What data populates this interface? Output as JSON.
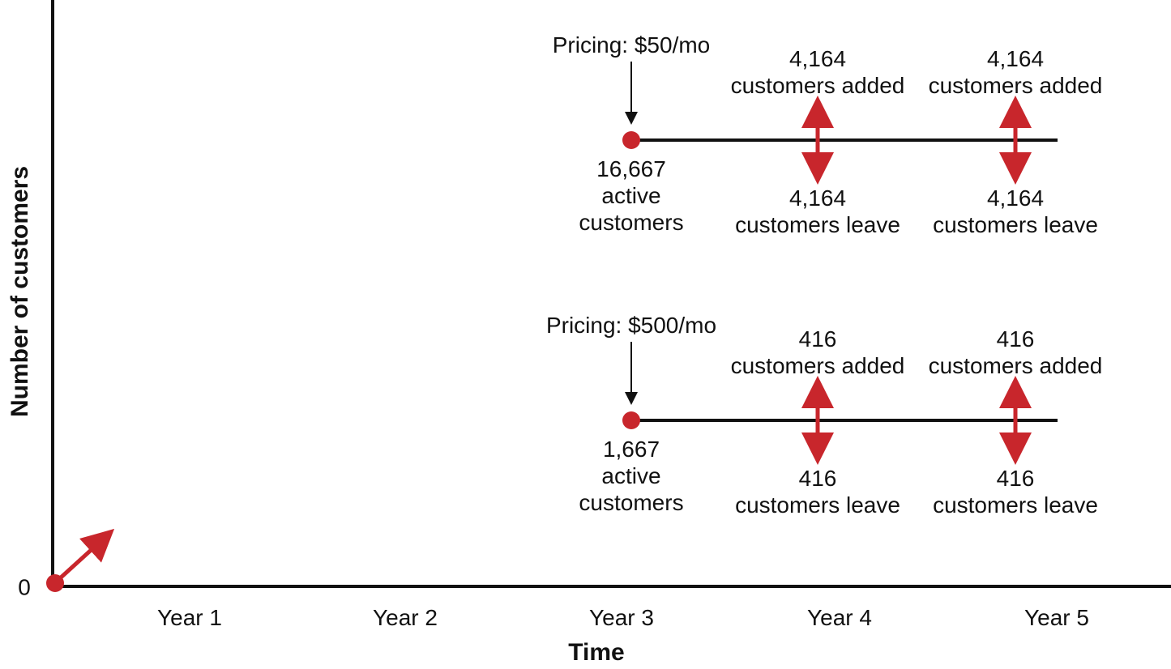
{
  "colors": {
    "accent": "#c8262c",
    "ink": "#111111",
    "background": "#ffffff"
  },
  "axes": {
    "x_title": "Time",
    "y_title": "Number of customers",
    "y_zero_label": "0",
    "x_ticks": [
      "Year 1",
      "Year 2",
      "Year 3",
      "Year 4",
      "Year 5"
    ]
  },
  "scenarios": [
    {
      "pricing_label": "Pricing: $50/mo",
      "start_value": "16,667",
      "start_value_caption_1": "active",
      "start_value_caption_2": "customers",
      "flows": [
        {
          "year": "Year 4",
          "added_count": "4,164",
          "added_caption": "customers added",
          "leave_count": "4,164",
          "leave_caption": "customers leave"
        },
        {
          "year": "Year 5",
          "added_count": "4,164",
          "added_caption": "customers added",
          "leave_count": "4,164",
          "leave_caption": "customers leave"
        }
      ]
    },
    {
      "pricing_label": "Pricing: $500/mo",
      "start_value": "1,667",
      "start_value_caption_1": "active",
      "start_value_caption_2": "customers",
      "flows": [
        {
          "year": "Year 4",
          "added_count": "416",
          "added_caption": "customers added",
          "leave_count": "416",
          "leave_caption": "customers leave"
        },
        {
          "year": "Year 5",
          "added_count": "416",
          "added_caption": "customers added",
          "leave_count": "416",
          "leave_caption": "customers leave"
        }
      ]
    }
  ]
}
